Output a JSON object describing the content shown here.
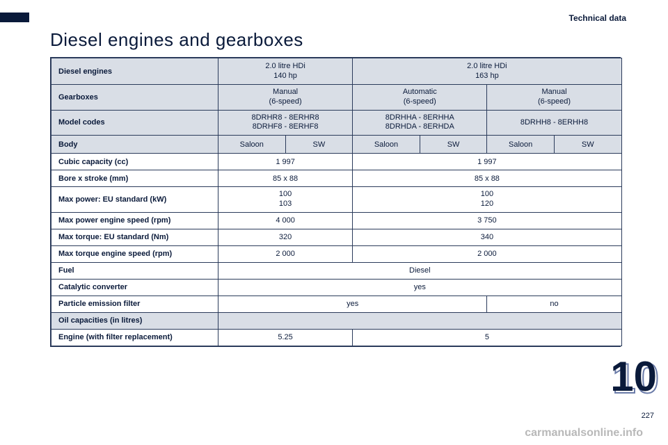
{
  "header": {
    "section": "Technical data"
  },
  "title": "Diesel engines and gearboxes",
  "page_number": "227",
  "chapter_number": "10",
  "watermark": "carmanualsonline.info",
  "table": {
    "row_engines": {
      "label": "Diesel engines",
      "col_a": "2.0 litre HDi\n140 hp",
      "col_b": "2.0 litre HDi\n163 hp"
    },
    "row_gearboxes": {
      "label": "Gearboxes",
      "g1": "Manual\n(6-speed)",
      "g2": "Automatic\n(6-speed)",
      "g3": "Manual\n(6-speed)"
    },
    "row_models": {
      "label": "Model codes",
      "m1": "8DRHR8 - 8ERHR8\n8DRHF8 - 8ERHF8",
      "m2": "8DRHHA - 8ERHHA\n8DRHDA - 8ERHDA",
      "m3": "8DRHH8 - 8ERHH8"
    },
    "row_body": {
      "label": "Body",
      "b1": "Saloon",
      "b2": "SW",
      "b3": "Saloon",
      "b4": "SW",
      "b5": "Saloon",
      "b6": "SW"
    },
    "rows": [
      {
        "label": "Cubic capacity (cc)",
        "a": "1 997",
        "b": "1 997"
      },
      {
        "label": "Bore x stroke (mm)",
        "a": "85 x 88",
        "b": "85 x 88"
      },
      {
        "label": "Max power: EU standard (kW)",
        "a": "100\n103",
        "b": "100\n120",
        "twoline": true
      },
      {
        "label": "Max power engine speed (rpm)",
        "a": "4 000",
        "b": "3 750"
      },
      {
        "label": "Max torque: EU standard (Nm)",
        "a": "320",
        "b": "340"
      },
      {
        "label": "Max torque engine speed (rpm)",
        "a": "2 000",
        "b": "2 000"
      }
    ],
    "fuel": {
      "label": "Fuel",
      "val": "Diesel"
    },
    "catalytic": {
      "label": "Catalytic converter",
      "val": "yes"
    },
    "pef": {
      "label": "Particle emission filter",
      "left": "yes",
      "right": "no"
    },
    "oil_heading": {
      "label": "Oil capacities (in litres)"
    },
    "engine_oil": {
      "label": "Engine (with filter replacement)",
      "a": "5.25",
      "b": "5"
    }
  },
  "style": {
    "shade": "#d9dee6",
    "border": "#2a3a5a",
    "text": "#0a1a3a"
  }
}
